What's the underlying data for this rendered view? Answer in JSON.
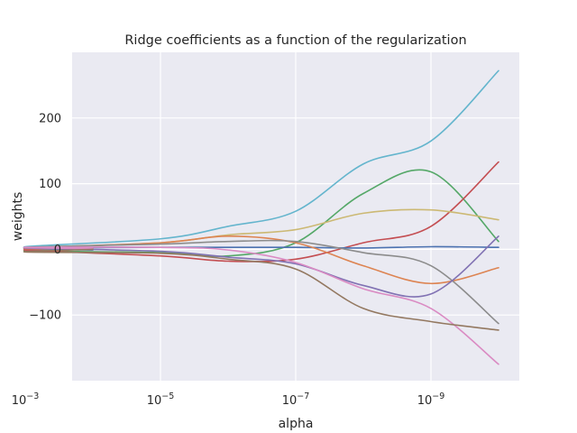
{
  "chart_data": {
    "type": "line",
    "title": "Ridge coefficients as a function of the regularization",
    "xlabel": "alpha",
    "ylabel": "weights",
    "x_scale": "log",
    "x_inverted": true,
    "xlim": [
      0.0001,
      1e-10
    ],
    "ylim": [
      -200,
      300
    ],
    "grid": true,
    "background": "#eaeaf2",
    "x_ticks": [
      {
        "base": "10",
        "exp": "−3",
        "value": 0.001
      },
      {
        "base": "10",
        "exp": "−5",
        "value": 1e-05
      },
      {
        "base": "10",
        "exp": "−7",
        "value": 1e-07
      },
      {
        "base": "10",
        "exp": "−9",
        "value": 1e-09
      }
    ],
    "y_ticks": [
      {
        "label": "−100",
        "value": -100
      },
      {
        "label": "0",
        "value": 0
      },
      {
        "label": "100",
        "value": 100
      },
      {
        "label": "200",
        "value": 200
      }
    ],
    "series": [
      {
        "color": "#64b5cd",
        "points": [
          [
            0.0001,
            2
          ],
          [
            0.001,
            4
          ],
          [
            1e-05,
            16
          ],
          [
            1e-06,
            35
          ],
          [
            1e-07,
            58
          ],
          [
            1e-08,
            130
          ],
          [
            1e-09,
            165
          ],
          [
            1e-10,
            272
          ]
        ]
      },
      {
        "color": "#55a868",
        "points": [
          [
            0.0001,
            1
          ],
          [
            0.001,
            -2
          ],
          [
            1e-05,
            -5
          ],
          [
            1e-06,
            -10
          ],
          [
            1e-07,
            10
          ],
          [
            1e-08,
            85
          ],
          [
            1e-09,
            118
          ],
          [
            1e-10,
            12
          ]
        ]
      },
      {
        "color": "#c44e52",
        "points": [
          [
            0.0001,
            0
          ],
          [
            0.001,
            -1
          ],
          [
            1e-05,
            -10
          ],
          [
            1e-06,
            -18
          ],
          [
            1e-07,
            -15
          ],
          [
            1e-08,
            10
          ],
          [
            1e-09,
            35
          ],
          [
            1e-10,
            133
          ]
        ]
      },
      {
        "color": "#ccb974",
        "points": [
          [
            0.0001,
            0
          ],
          [
            0.001,
            2
          ],
          [
            1e-05,
            10
          ],
          [
            1e-06,
            22
          ],
          [
            1e-07,
            30
          ],
          [
            1e-08,
            55
          ],
          [
            1e-09,
            60
          ],
          [
            1e-10,
            45
          ]
        ]
      },
      {
        "color": "#4c72b0",
        "points": [
          [
            0.0001,
            -1
          ],
          [
            0.001,
            2
          ],
          [
            1e-05,
            3
          ],
          [
            1e-06,
            3
          ],
          [
            1e-07,
            3
          ],
          [
            1e-08,
            2
          ],
          [
            1e-09,
            4
          ],
          [
            1e-10,
            3
          ]
        ]
      },
      {
        "color": "#dd8452",
        "points": [
          [
            0.0001,
            1
          ],
          [
            0.001,
            2
          ],
          [
            1e-05,
            10
          ],
          [
            1e-06,
            20
          ],
          [
            1e-07,
            10
          ],
          [
            1e-08,
            -25
          ],
          [
            1e-09,
            -52
          ],
          [
            1e-10,
            -28
          ]
        ]
      },
      {
        "color": "#8c8c8c",
        "points": [
          [
            0.0001,
            0
          ],
          [
            0.001,
            3
          ],
          [
            1e-05,
            8
          ],
          [
            1e-06,
            12
          ],
          [
            1e-07,
            12
          ],
          [
            1e-08,
            -5
          ],
          [
            1e-09,
            -25
          ],
          [
            1e-10,
            -113
          ]
        ]
      },
      {
        "color": "#8172b3",
        "points": [
          [
            0.0001,
            1
          ],
          [
            0.001,
            2
          ],
          [
            1e-05,
            -3
          ],
          [
            1e-06,
            -12
          ],
          [
            1e-07,
            -22
          ],
          [
            1e-08,
            -55
          ],
          [
            1e-09,
            -68
          ],
          [
            1e-10,
            20
          ]
        ]
      },
      {
        "color": "#da8bc3",
        "points": [
          [
            0.0001,
            1
          ],
          [
            0.001,
            3
          ],
          [
            1e-05,
            3
          ],
          [
            1e-06,
            -1
          ],
          [
            1e-07,
            -20
          ],
          [
            1e-08,
            -60
          ],
          [
            1e-09,
            -90
          ],
          [
            1e-10,
            -175
          ]
        ]
      },
      {
        "color": "#937860",
        "points": [
          [
            0.0001,
            0
          ],
          [
            0.001,
            -4
          ],
          [
            1e-05,
            -6
          ],
          [
            1e-06,
            -15
          ],
          [
            1e-07,
            -30
          ],
          [
            1e-08,
            -90
          ],
          [
            1e-09,
            -110
          ],
          [
            1e-10,
            -123
          ]
        ]
      }
    ]
  }
}
